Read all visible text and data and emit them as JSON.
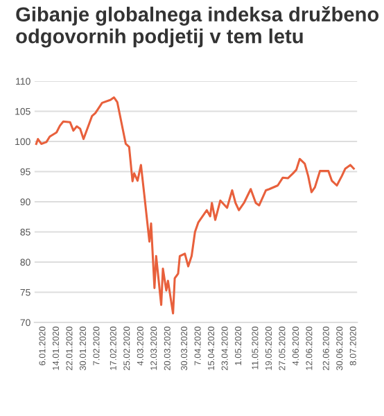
{
  "chart_data": {
    "type": "line",
    "title": "Gibanje globalnega indeksa družbeno odgovornih podjetij v tem letu",
    "x": [
      "2020-01-02",
      "2020-01-03",
      "2020-01-05",
      "2020-01-08",
      "2020-01-10",
      "2020-01-14",
      "2020-01-16",
      "2020-01-18",
      "2020-01-22",
      "2020-01-24",
      "2020-01-26",
      "2020-01-28",
      "2020-01-30",
      "2020-02-04",
      "2020-02-06",
      "2020-02-10",
      "2020-02-15",
      "2020-02-17",
      "2020-02-19",
      "2020-02-24",
      "2020-02-26",
      "2020-02-28",
      "2020-02-29",
      "2020-03-02",
      "2020-03-04",
      "2020-03-06",
      "2020-03-09",
      "2020-03-10",
      "2020-03-12",
      "2020-03-13",
      "2020-03-16",
      "2020-03-17",
      "2020-03-19",
      "2020-03-20",
      "2020-03-23",
      "2020-03-24",
      "2020-03-26",
      "2020-03-27",
      "2020-03-30",
      "2020-04-01",
      "2020-04-03",
      "2020-04-05",
      "2020-04-07",
      "2020-04-09",
      "2020-04-12",
      "2020-04-14",
      "2020-04-15",
      "2020-04-17",
      "2020-04-20",
      "2020-04-24",
      "2020-04-27",
      "2020-04-29",
      "2020-05-01",
      "2020-05-04",
      "2020-05-08",
      "2020-05-11",
      "2020-05-13",
      "2020-05-17",
      "2020-05-19",
      "2020-05-24",
      "2020-05-27",
      "2020-05-30",
      "2020-06-02",
      "2020-06-04",
      "2020-06-06",
      "2020-06-09",
      "2020-06-11",
      "2020-06-13",
      "2020-06-15",
      "2020-06-18",
      "2020-06-23",
      "2020-06-25",
      "2020-06-28",
      "2020-07-01",
      "2020-07-03",
      "2020-07-06",
      "2020-07-08"
    ],
    "series": [
      {
        "color": "#e8603c",
        "values": [
          99.6,
          100.4,
          99.6,
          99.9,
          100.8,
          101.5,
          102.6,
          103.3,
          103.2,
          101.8,
          102.5,
          102.1,
          100.4,
          104.2,
          104.7,
          106.4,
          106.9,
          107.3,
          106.5,
          99.6,
          99.1,
          93.4,
          94.7,
          93.5,
          96.1,
          91.1,
          83.4,
          86.4,
          75.7,
          81.0,
          72.9,
          78.9,
          75.3,
          76.9,
          71.5,
          77.3,
          78.1,
          81.0,
          81.4,
          79.3,
          81.0,
          85.0,
          86.6,
          87.4,
          88.6,
          87.6,
          89.8,
          87.0,
          90.2,
          89.0,
          91.9,
          89.8,
          88.6,
          89.8,
          92.1,
          89.8,
          89.4,
          91.9,
          92.1,
          92.7,
          94.0,
          93.9,
          94.7,
          95.3,
          97.1,
          96.3,
          94.3,
          91.6,
          92.4,
          95.1,
          95.1,
          93.5,
          92.7,
          94.3,
          95.5,
          96.1,
          95.5
        ]
      }
    ],
    "xlim": [
      "2020-01-01",
      "2020-07-10"
    ],
    "xticks": [
      {
        "value": "2020-01-06",
        "label": "6.01.2020"
      },
      {
        "value": "2020-01-14",
        "label": "14.01.2020"
      },
      {
        "value": "2020-01-22",
        "label": "22.01.2020"
      },
      {
        "value": "2020-01-30",
        "label": "30.01.2020"
      },
      {
        "value": "2020-02-07",
        "label": "7.02.2020"
      },
      {
        "value": "2020-02-17",
        "label": "17.02.2020"
      },
      {
        "value": "2020-02-25",
        "label": "25.02.2020"
      },
      {
        "value": "2020-03-04",
        "label": "4.03.2020"
      },
      {
        "value": "2020-03-12",
        "label": "12.03.2020"
      },
      {
        "value": "2020-03-20",
        "label": "20.03.2020"
      },
      {
        "value": "2020-03-30",
        "label": "30.03.2020"
      },
      {
        "value": "2020-04-07",
        "label": "7.04.2020"
      },
      {
        "value": "2020-04-15",
        "label": "15.04.2020"
      },
      {
        "value": "2020-04-23",
        "label": "23.04.2020"
      },
      {
        "value": "2020-05-01",
        "label": "1.05.2020"
      },
      {
        "value": "2020-05-11",
        "label": "11.05.2020"
      },
      {
        "value": "2020-05-19",
        "label": "19.05.2020"
      },
      {
        "value": "2020-05-27",
        "label": "27.05.2020"
      },
      {
        "value": "2020-06-04",
        "label": "4.06.2020"
      },
      {
        "value": "2020-06-12",
        "label": "12.06.2020"
      },
      {
        "value": "2020-06-22",
        "label": "22.06.2020"
      },
      {
        "value": "2020-06-30",
        "label": "30.06.2020"
      },
      {
        "value": "2020-07-08",
        "label": "8.07.2020"
      }
    ],
    "ylim": [
      70,
      110
    ],
    "yticks": [
      70,
      75,
      80,
      85,
      90,
      95,
      100,
      105,
      110
    ],
    "grid": "y",
    "legend": false,
    "marker": "none",
    "line_style": "solid"
  }
}
